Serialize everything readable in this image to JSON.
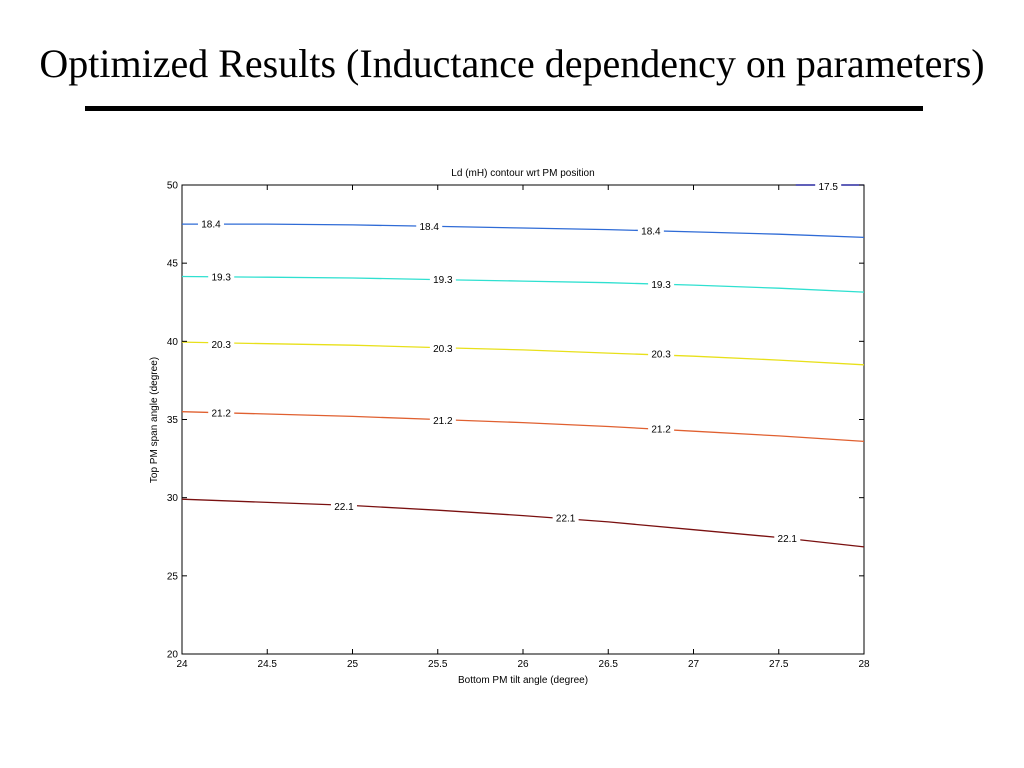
{
  "slide": {
    "title": "Optimized Results (Inductance dependency on parameters)"
  },
  "chart_data": {
    "type": "contour",
    "title": "Ld (mH) contour wrt PM position",
    "xlabel": "Bottom PM tilt angle (degree)",
    "ylabel": "Top PM  span angle (degree)",
    "xlim": [
      24,
      28
    ],
    "ylim": [
      20,
      50
    ],
    "xticks": [
      24,
      24.5,
      25,
      25.5,
      26,
      26.5,
      27,
      27.5,
      28
    ],
    "xtick_labels": [
      "24",
      "24.5",
      "25",
      "25.5",
      "26",
      "26.5",
      "27",
      "27.5",
      "28"
    ],
    "yticks": [
      20,
      25,
      30,
      35,
      40,
      45,
      50
    ],
    "ytick_labels": [
      "20",
      "25",
      "30",
      "35",
      "40",
      "45",
      "50"
    ],
    "grid": false,
    "series": [
      {
        "name": "17.5",
        "color": "#00008f",
        "x": [
          27.6,
          27.8,
          28.0
        ],
        "y": [
          50.0,
          50.0,
          50.0
        ],
        "label_positions": [
          [
            27.79,
            49.9
          ]
        ]
      },
      {
        "name": "18.4",
        "color": "#2f6bd6",
        "x": [
          24.0,
          24.5,
          25.0,
          25.5,
          26.0,
          26.5,
          27.0,
          27.5,
          28.0
        ],
        "y": [
          47.5,
          47.5,
          47.45,
          47.35,
          47.25,
          47.15,
          47.0,
          46.85,
          46.65
        ],
        "label_positions": [
          [
            24.17,
            47.5
          ],
          [
            25.45,
            47.35
          ],
          [
            26.75,
            47.05
          ]
        ]
      },
      {
        "name": "19.3",
        "color": "#2fe0d0",
        "x": [
          24.0,
          24.5,
          25.0,
          25.5,
          26.0,
          26.5,
          27.0,
          27.5,
          28.0
        ],
        "y": [
          44.15,
          44.1,
          44.05,
          43.95,
          43.85,
          43.75,
          43.6,
          43.4,
          43.15
        ],
        "label_positions": [
          [
            24.23,
            44.1
          ],
          [
            25.53,
            43.95
          ],
          [
            26.81,
            43.65
          ]
        ]
      },
      {
        "name": "20.3",
        "color": "#e8e01a",
        "x": [
          24.0,
          24.5,
          25.0,
          25.5,
          26.0,
          26.5,
          27.0,
          27.5,
          28.0
        ],
        "y": [
          39.95,
          39.85,
          39.75,
          39.6,
          39.45,
          39.25,
          39.05,
          38.8,
          38.5
        ],
        "label_positions": [
          [
            24.23,
            39.8
          ],
          [
            25.53,
            39.55
          ],
          [
            26.81,
            39.2
          ]
        ]
      },
      {
        "name": "21.2",
        "color": "#e06030",
        "x": [
          24.0,
          24.5,
          25.0,
          25.5,
          26.0,
          26.5,
          27.0,
          27.5,
          28.0
        ],
        "y": [
          35.5,
          35.35,
          35.2,
          35.0,
          34.8,
          34.55,
          34.25,
          33.95,
          33.6
        ],
        "label_positions": [
          [
            24.23,
            35.4
          ],
          [
            25.53,
            34.95
          ],
          [
            26.81,
            34.4
          ]
        ]
      },
      {
        "name": "22.1",
        "color": "#7a1010",
        "x": [
          24.0,
          24.5,
          25.0,
          25.5,
          26.0,
          26.5,
          27.0,
          27.5,
          28.0
        ],
        "y": [
          29.9,
          29.7,
          29.5,
          29.2,
          28.85,
          28.45,
          27.95,
          27.45,
          26.85
        ],
        "label_positions": [
          [
            24.95,
            29.45
          ],
          [
            26.25,
            28.7
          ],
          [
            27.55,
            27.4
          ]
        ]
      }
    ]
  }
}
